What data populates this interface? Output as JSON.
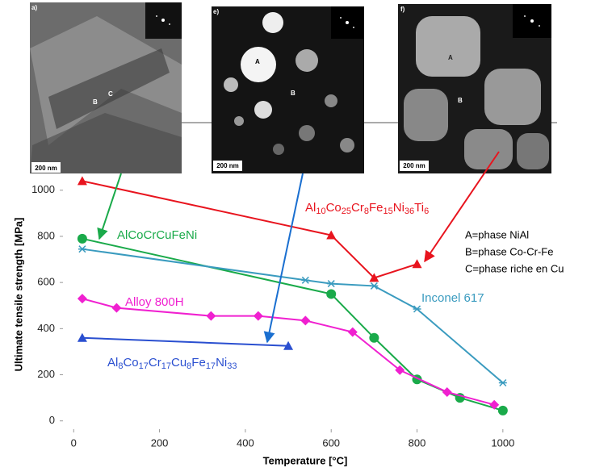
{
  "chart_data": {
    "type": "line",
    "x_label": "Temperature [°C]",
    "y_label": "Ultimate tensile strength [MPa]",
    "xlim": [
      -40,
      1100
    ],
    "xticks": [
      0,
      200,
      400,
      600,
      800,
      1000
    ],
    "ylim": [
      -50,
      1300
    ],
    "yticks": [
      0,
      200,
      400,
      600,
      800,
      1000
    ],
    "grid": false,
    "series": [
      {
        "name": "Al10Co25Cr8Fe15Ni36Ti6",
        "color": "#e8141e",
        "marker": "triangle",
        "x": [
          20,
          600,
          700,
          800
        ],
        "values": [
          1040,
          805,
          620,
          680
        ]
      },
      {
        "name": "AlCoCrCuFeNi",
        "color": "#1aaa4a",
        "marker": "circle",
        "x": [
          20,
          600,
          700,
          800,
          900,
          1000
        ],
        "values": [
          790,
          550,
          360,
          180,
          100,
          45
        ]
      },
      {
        "name": "Inconel 617",
        "color": "#3a9bbf",
        "marker": "star",
        "x": [
          20,
          540,
          600,
          700,
          800,
          1000
        ],
        "values": [
          745,
          610,
          595,
          585,
          485,
          165
        ]
      },
      {
        "name": "Alloy 800H",
        "color": "#f020d0",
        "marker": "diamond",
        "x": [
          20,
          100,
          320,
          430,
          540,
          650,
          760,
          870,
          980
        ],
        "values": [
          530,
          490,
          455,
          455,
          435,
          385,
          220,
          125,
          70
        ]
      },
      {
        "name": "Al8Co17Cr17Cu8Fe17Ni33",
        "color": "#2a4fd0",
        "marker": "triangle",
        "x": [
          20,
          500
        ],
        "values": [
          360,
          325
        ]
      }
    ],
    "annotations": [
      "A=phase NiAl",
      "B=phase Co-Cr-Fe",
      "C=phase riche en Cu"
    ]
  },
  "micrographs": [
    {
      "label": "a)",
      "scale": "200 nm",
      "phases": [
        "B",
        "C"
      ]
    },
    {
      "label": "e)",
      "scale": "200 nm",
      "phases": [
        "A",
        "B"
      ]
    },
    {
      "label": "f)",
      "scale": "200 nm",
      "phases": [
        "A",
        "B"
      ]
    }
  ]
}
